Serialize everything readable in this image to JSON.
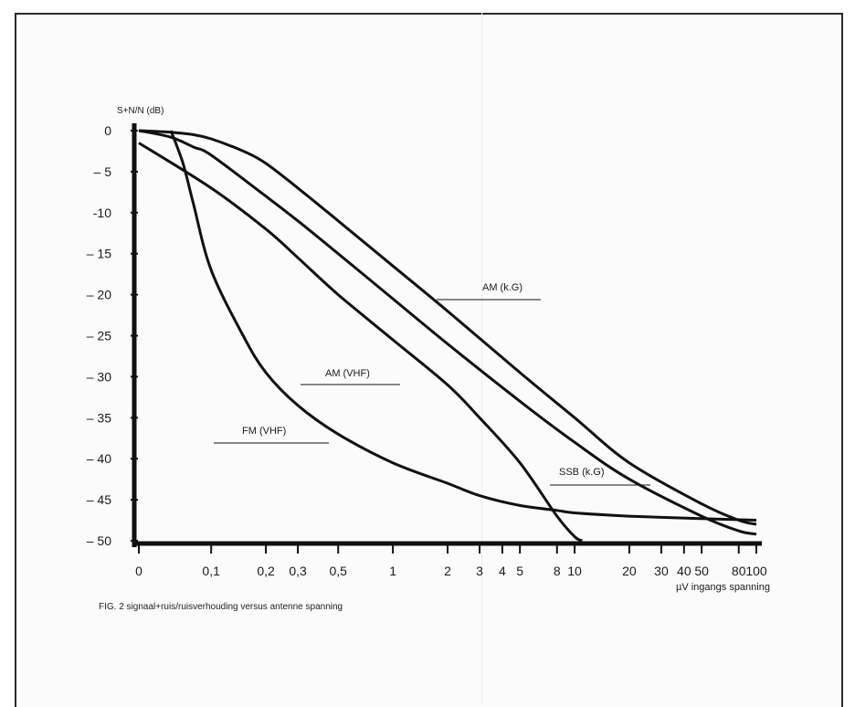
{
  "caption": "FIG. 2 signaal+ruis/ruisverhouding versus antenne spanning",
  "chart_data": {
    "type": "line",
    "ylabel": "S+N/N (dB)",
    "xlabel": "µV ingangs spanning",
    "x_scale": "log",
    "ylim": [
      -50,
      0
    ],
    "yticks": [
      0,
      -5,
      -10,
      -15,
      -20,
      -25,
      -30,
      -35,
      -40,
      -45,
      -50
    ],
    "ytick_labels": [
      "0",
      "– 5",
      "-10",
      "– 15",
      "– 20",
      "– 25",
      "– 30",
      "– 35",
      "– 40",
      "– 45",
      "– 50"
    ],
    "xticks": [
      0.04,
      0.1,
      0.2,
      0.3,
      0.5,
      1,
      2,
      3,
      4,
      5,
      8,
      10,
      20,
      30,
      40,
      50,
      80,
      100
    ],
    "xtick_labels": [
      "0",
      "0,1",
      "0,2",
      "0,3",
      "0,5",
      "1",
      "2",
      "3",
      "4",
      "5",
      "8",
      "10",
      "20",
      "30",
      "40",
      "50",
      "80",
      "100"
    ],
    "series": [
      {
        "name": "AM (k.G)",
        "x": [
          0.04,
          0.05,
          0.06,
          0.08,
          0.1,
          0.15,
          0.2,
          0.3,
          0.5,
          1,
          2,
          5,
          10,
          20,
          50,
          80,
          100
        ],
        "y": [
          0,
          -0.1,
          -0.2,
          -0.5,
          -1,
          -2.5,
          -4,
          -7,
          -11,
          -16.5,
          -22,
          -29.5,
          -35,
          -40.5,
          -45.5,
          -47.5,
          -48
        ]
      },
      {
        "name": "SSB (k.G)",
        "x": [
          0.04,
          0.06,
          0.08,
          0.1,
          0.2,
          0.3,
          0.5,
          1,
          2,
          5,
          10,
          20,
          50,
          80,
          100
        ],
        "y": [
          0,
          -0.8,
          -2,
          -3,
          -8,
          -11,
          -15,
          -20.5,
          -26,
          -33,
          -38,
          -42.5,
          -47,
          -48.8,
          -49.2
        ]
      },
      {
        "name": "AM (VHF)",
        "x": [
          0.04,
          0.1,
          0.2,
          0.3,
          0.5,
          1,
          2,
          3,
          5,
          8,
          10,
          11
        ],
        "y": [
          -1.5,
          -7,
          -12,
          -15.5,
          -20,
          -25.5,
          -31,
          -35,
          -40.5,
          -47,
          -49.5,
          -50
        ]
      },
      {
        "name": "FM (VHF)",
        "x": [
          0.06,
          0.07,
          0.08,
          0.1,
          0.15,
          0.2,
          0.3,
          0.5,
          1,
          2,
          3,
          5,
          8,
          10,
          20,
          50,
          100
        ],
        "y": [
          0,
          -4,
          -9,
          -17,
          -25,
          -29.5,
          -33.5,
          -37,
          -40.5,
          -43,
          -44.5,
          -45.7,
          -46.3,
          -46.6,
          -47,
          -47.3,
          -47.5
        ]
      }
    ]
  }
}
